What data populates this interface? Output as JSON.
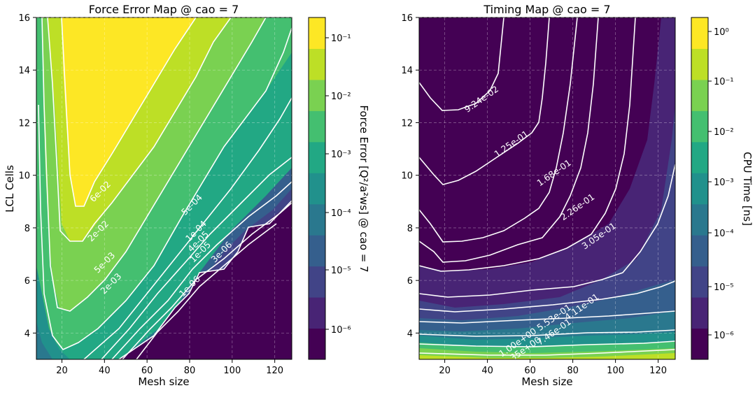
{
  "colors": {
    "viridis": [
      "#440154",
      "#482475",
      "#414487",
      "#355f8d",
      "#2a788e",
      "#21918c",
      "#22a884",
      "#44bf70",
      "#7ad151",
      "#bddf26",
      "#fde725"
    ]
  },
  "chart_data": [
    {
      "type": "contour",
      "title": "Force Error Map @ cao = 7",
      "xlabel": "Mesh size",
      "ylabel": "LCL Cells",
      "xlim": [
        8,
        128
      ],
      "ylim": [
        3,
        16
      ],
      "xticks": [
        "20",
        "40",
        "60",
        "80",
        "100",
        "120"
      ],
      "yticks": [
        "4",
        "6",
        "8",
        "10",
        "12",
        "14",
        "16"
      ],
      "grid": true,
      "colorbar_label": "Force Error  [Q²/a²ws] @ cao = 7",
      "colorbar_scale": "log",
      "colorbar_ticks": [
        "10⁻⁶",
        "10⁻⁵",
        "10⁻⁴",
        "10⁻³",
        "10⁻²",
        "10⁻¹"
      ],
      "contour_labels": [
        {
          "text": "6e-02",
          "x": 39,
          "y": 9.3
        },
        {
          "text": "2e-02",
          "x": 38,
          "y": 7.8
        },
        {
          "text": "5e-03",
          "x": 41,
          "y": 6.6
        },
        {
          "text": "2e-03",
          "x": 44,
          "y": 5.8
        },
        {
          "text": "5e-04",
          "x": 82,
          "y": 8.8
        },
        {
          "text": "1e-04",
          "x": 84,
          "y": 7.8
        },
        {
          "text": "4e-05",
          "x": 85,
          "y": 7.4
        },
        {
          "text": "1e-05",
          "x": 86,
          "y": 7.0
        },
        {
          "text": "3e-06",
          "x": 96,
          "y": 7.0
        },
        {
          "text": "1e-06",
          "x": 81,
          "y": 5.7
        }
      ]
    },
    {
      "type": "contour",
      "title": "Timing Map @ cao = 7",
      "xlabel": "Mesh size",
      "ylabel": "",
      "xlim": [
        8,
        128
      ],
      "ylim": [
        3,
        16
      ],
      "xticks": [
        "20",
        "40",
        "60",
        "80",
        "100",
        "120"
      ],
      "yticks": [
        "4",
        "6",
        "8",
        "10",
        "12",
        "14",
        "16"
      ],
      "grid": true,
      "colorbar_label": "CPU Time [ns]",
      "colorbar_scale": "log",
      "colorbar_ticks": [
        "10⁻⁶",
        "10⁻⁵",
        "10⁻⁴",
        "10⁻³",
        "10⁻²",
        "10⁻¹",
        "10⁰"
      ],
      "contour_labels": [
        {
          "text": "9.24e-02",
          "x": 38,
          "y": 12.8
        },
        {
          "text": "1.25e-01",
          "x": 52,
          "y": 11.1
        },
        {
          "text": "1.68e-01",
          "x": 72,
          "y": 10.0
        },
        {
          "text": "2.26e-01",
          "x": 83,
          "y": 8.7
        },
        {
          "text": "3.05e-01",
          "x": 93,
          "y": 7.6
        },
        {
          "text": "4.11e-01",
          "x": 85,
          "y": 4.9
        },
        {
          "text": "5.53e-01",
          "x": 72,
          "y": 4.5
        },
        {
          "text": "7.46e-01",
          "x": 72,
          "y": 3.95
        },
        {
          "text": "1.00e+00",
          "x": 55,
          "y": 3.55
        },
        {
          "text": "1.35e+00",
          "x": 57,
          "y": 3.22
        }
      ]
    }
  ]
}
